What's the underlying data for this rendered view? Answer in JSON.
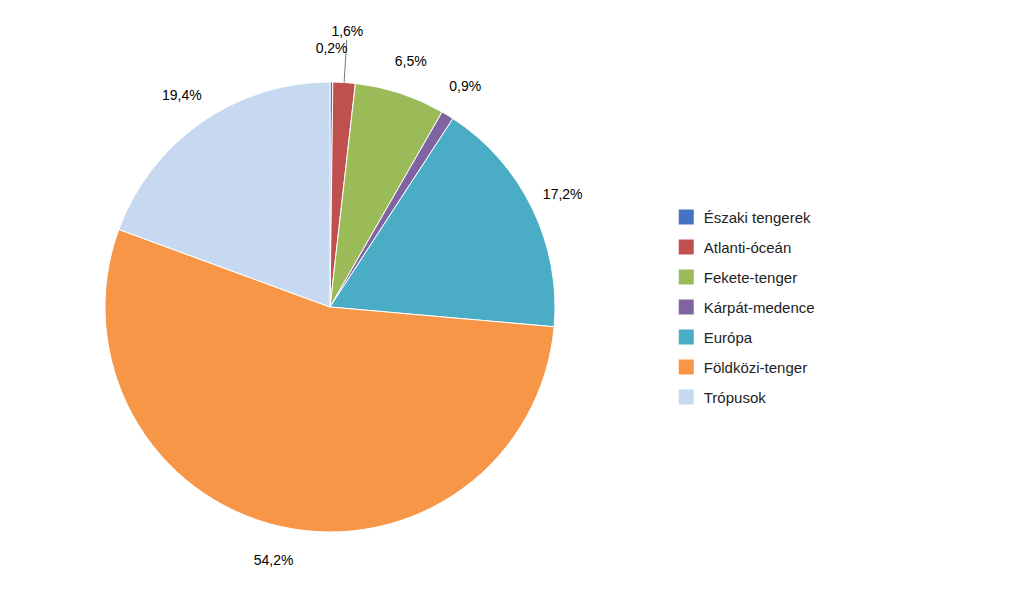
{
  "chart_data": {
    "type": "pie",
    "categories": [
      "Északi tengerek",
      "Atlanti-óceán",
      "Fekete-tenger",
      "Kárpát-medence",
      "Európa",
      "Földközi-tenger",
      "Trópusok"
    ],
    "values": [
      0.2,
      1.6,
      6.5,
      0.9,
      17.2,
      54.2,
      19.4
    ],
    "value_labels": [
      "0,2%",
      "1,6%",
      "6,5%",
      "0,9%",
      "17,2%",
      "54,2%",
      "19,4%"
    ],
    "colors": [
      "#4472C4",
      "#C0504D",
      "#9BBB59",
      "#8064A2",
      "#4BACC6",
      "#F79646",
      "#C6D9F1"
    ],
    "data_labels": true,
    "legend": "right"
  }
}
